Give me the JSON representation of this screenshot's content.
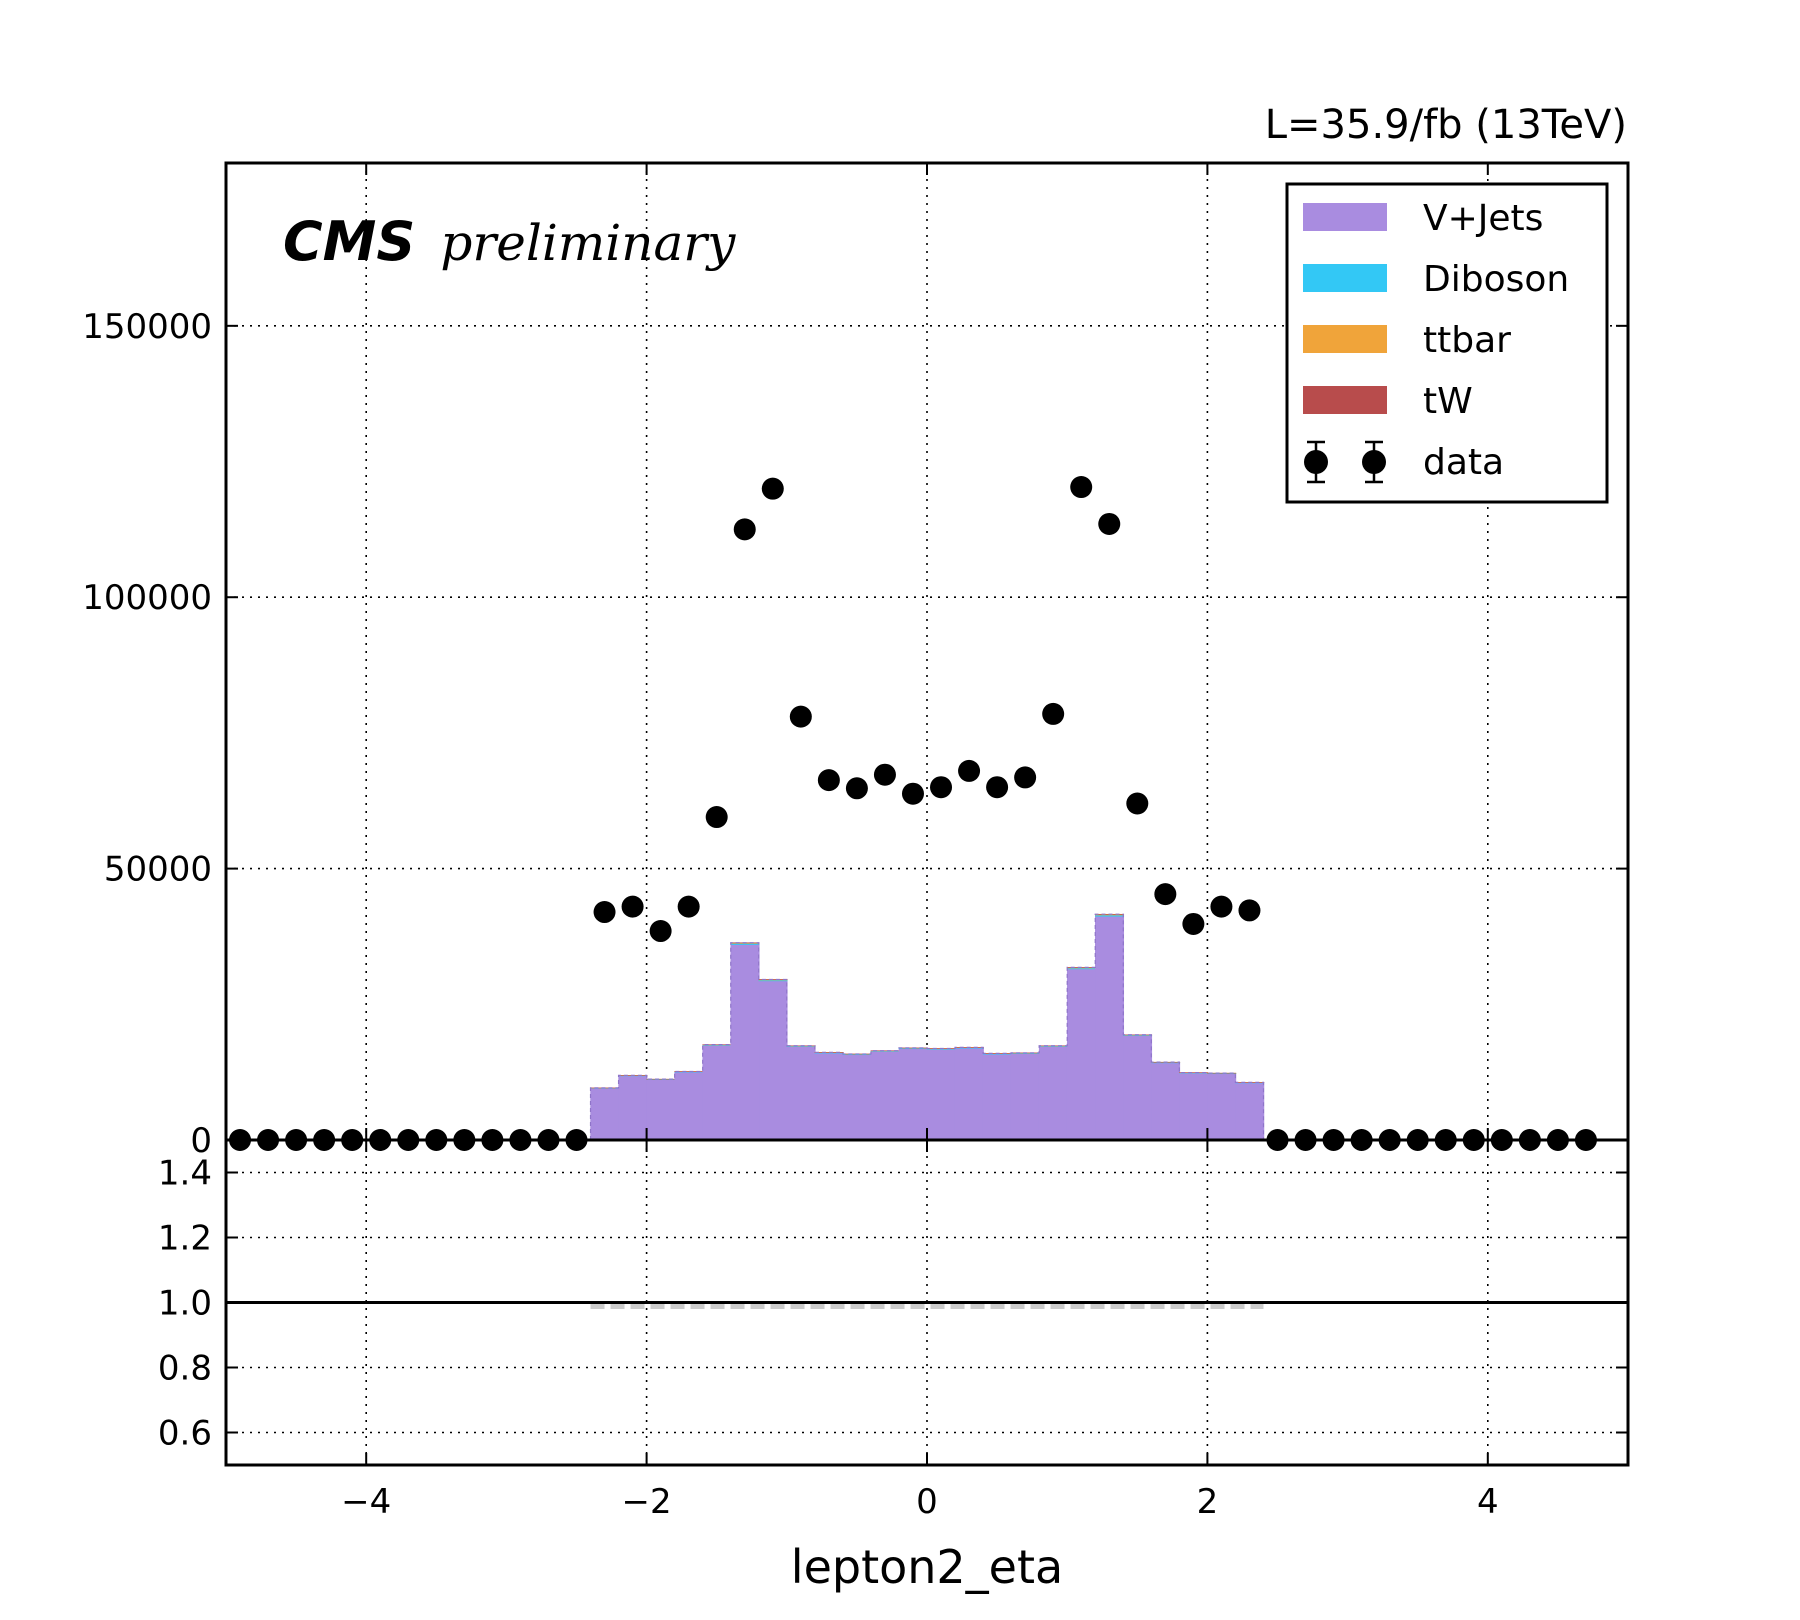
{
  "header": {
    "lumi_label": "L=35.9/fb (13TeV)",
    "experiment": "CMS",
    "status": "preliminary"
  },
  "colors": {
    "V+Jets": "#a98ce0",
    "Diboson": "#33c8f5",
    "ttbar": "#f0a43a",
    "tW": "#b84c4c",
    "data": "#000000",
    "grid": "#000000",
    "ratio_mc_band": "#cccccc"
  },
  "chart_data": [
    {
      "type": "bar",
      "panel": "main",
      "xlabel": "",
      "ylabel": "",
      "xlim": [
        -5,
        5
      ],
      "ylim": [
        0,
        180000
      ],
      "xticks": [
        "−4",
        "−2",
        "0",
        "2",
        "4"
      ],
      "xtick_values": [
        -4,
        -2,
        0,
        2,
        4
      ],
      "yticks": [
        "0",
        "50000",
        "100000",
        "150000"
      ],
      "ytick_values": [
        0,
        50000,
        100000,
        150000
      ],
      "grid": true,
      "legend_position": "top-right",
      "bin_width": 0.2,
      "stack_bins_x": [
        -2.3,
        -2.1,
        -1.9,
        -1.7,
        -1.5,
        -1.3,
        -1.1,
        -0.9,
        -0.7,
        -0.5,
        -0.3,
        -0.1,
        0.1,
        0.3,
        0.5,
        0.7,
        0.9,
        1.1,
        1.3,
        1.5,
        1.7,
        1.9,
        2.1,
        2.3
      ],
      "series": [
        {
          "name": "V+Jets",
          "kind": "stacked-bar",
          "values": [
            9500,
            11800,
            11100,
            12500,
            17400,
            36000,
            29300,
            17200,
            16000,
            15700,
            16300,
            16800,
            16700,
            16900,
            15800,
            15900,
            17200,
            31500,
            41200,
            19200,
            14200,
            12300,
            12200,
            10500
          ]
        },
        {
          "name": "Diboson",
          "kind": "stacked-bar",
          "values": [
            60,
            70,
            70,
            75,
            100,
            210,
            170,
            100,
            95,
            90,
            95,
            100,
            100,
            100,
            95,
            95,
            100,
            180,
            240,
            110,
            85,
            75,
            75,
            65
          ]
        },
        {
          "name": "ttbar",
          "kind": "stacked-bar",
          "values": [
            30,
            35,
            35,
            40,
            55,
            110,
            90,
            55,
            50,
            50,
            50,
            55,
            55,
            55,
            50,
            50,
            55,
            95,
            125,
            60,
            45,
            40,
            40,
            35
          ]
        },
        {
          "name": "tW",
          "kind": "stacked-bar",
          "values": [
            10,
            10,
            10,
            12,
            15,
            30,
            25,
            15,
            14,
            14,
            14,
            15,
            15,
            15,
            14,
            14,
            15,
            26,
            34,
            17,
            13,
            11,
            11,
            10
          ]
        },
        {
          "name": "data",
          "kind": "points",
          "x": [
            -4.9,
            -4.7,
            -4.5,
            -4.3,
            -4.1,
            -3.9,
            -3.7,
            -3.5,
            -3.3,
            -3.1,
            -2.9,
            -2.7,
            -2.5,
            -2.3,
            -2.1,
            -1.9,
            -1.7,
            -1.5,
            -1.3,
            -1.1,
            -0.9,
            -0.7,
            -0.5,
            -0.3,
            -0.1,
            0.1,
            0.3,
            0.5,
            0.7,
            0.9,
            1.1,
            1.3,
            1.5,
            1.7,
            1.9,
            2.1,
            2.3,
            2.5,
            2.7,
            2.9,
            3.1,
            3.3,
            3.5,
            3.7,
            3.9,
            4.1,
            4.3,
            4.5,
            4.7
          ],
          "values": [
            0,
            0,
            0,
            0,
            0,
            0,
            0,
            0,
            0,
            0,
            0,
            0,
            0,
            42000,
            43000,
            38500,
            43000,
            59500,
            112500,
            120000,
            78000,
            66300,
            64800,
            67300,
            63800,
            65000,
            68000,
            65000,
            66800,
            78500,
            120300,
            113500,
            62000,
            45300,
            39800,
            43000,
            42300,
            0,
            0,
            0,
            0,
            0,
            0,
            0,
            0,
            0,
            0,
            0,
            0
          ]
        }
      ]
    },
    {
      "type": "line",
      "panel": "ratio",
      "xlabel": "lepton2_eta",
      "ylabel": "",
      "xlim": [
        -5,
        5
      ],
      "ylim": [
        0.5,
        1.5
      ],
      "yticks": [
        "0.6",
        "0.8",
        "1.0",
        "1.2",
        "1.4"
      ],
      "ytick_values": [
        0.6,
        0.8,
        1.0,
        1.2,
        1.4
      ],
      "xticks": [
        "−4",
        "−2",
        "0",
        "2",
        "4"
      ],
      "xtick_values": [
        -4,
        -2,
        0,
        2,
        4
      ],
      "grid": true,
      "reference_line": 1.0,
      "mc_band": {
        "x_range": [
          -2.4,
          2.4
        ],
        "value": 1.0
      }
    }
  ]
}
